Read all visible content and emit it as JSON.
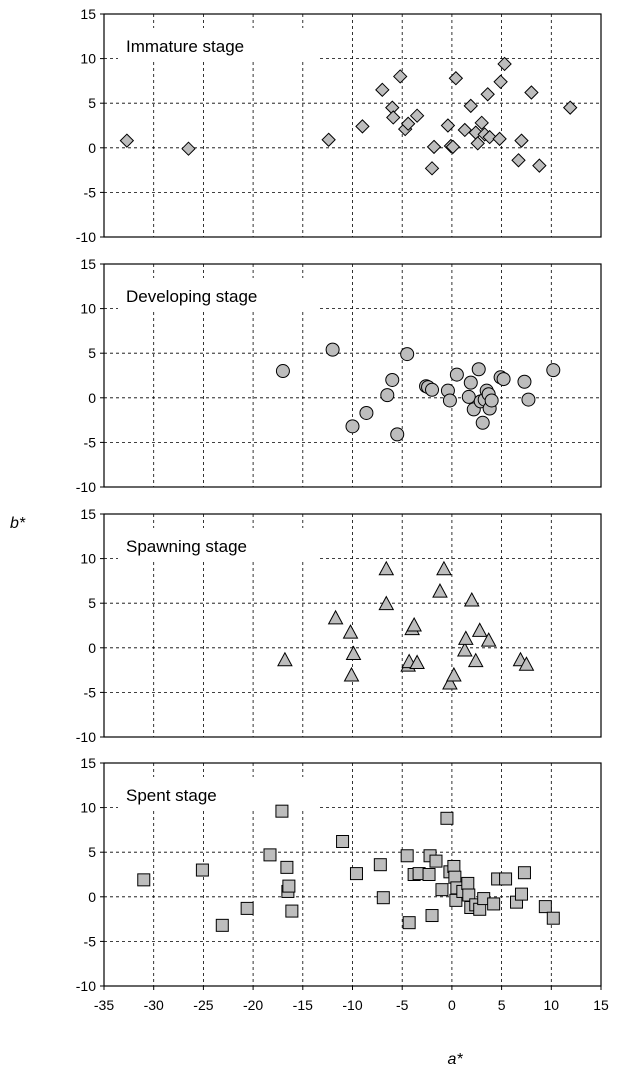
{
  "chart_data": {
    "type": "scatter",
    "xlabel": "a*",
    "ylabel": "b*",
    "xlim": [
      -35,
      15
    ],
    "ylim": [
      -10,
      15
    ],
    "xticks": [
      "-35",
      "-30",
      "-25",
      "-20",
      "-15",
      "-10",
      "-5",
      "0",
      "5",
      "10",
      "15"
    ],
    "yticks": [
      "-10",
      "-5",
      "0",
      "5",
      "10",
      "15"
    ],
    "grid": true,
    "marker_fill": "#bdbdbd",
    "panels": [
      {
        "title": "Immature stage",
        "marker": "diamond",
        "points": [
          [
            -32.7,
            0.8
          ],
          [
            -26.5,
            -0.1
          ],
          [
            -12.4,
            0.9
          ],
          [
            -9,
            2.4
          ],
          [
            -7,
            6.5
          ],
          [
            -6,
            4.5
          ],
          [
            -5.9,
            3.4
          ],
          [
            -5.2,
            8
          ],
          [
            -4.7,
            2.1
          ],
          [
            -4.4,
            2.7
          ],
          [
            -3.5,
            3.6
          ],
          [
            -2,
            -2.3
          ],
          [
            -1.8,
            0.1
          ],
          [
            -0.4,
            2.5
          ],
          [
            -0.1,
            0.2
          ],
          [
            0.1,
            0.1
          ],
          [
            0.4,
            7.8
          ],
          [
            1.3,
            2
          ],
          [
            1.9,
            4.7
          ],
          [
            2.4,
            1.7
          ],
          [
            2.6,
            0.5
          ],
          [
            3,
            2.8
          ],
          [
            3.3,
            1.5
          ],
          [
            3.6,
            6
          ],
          [
            3.8,
            1.2
          ],
          [
            4.8,
            1
          ],
          [
            4.9,
            7.4
          ],
          [
            5.3,
            9.4
          ],
          [
            6.7,
            -1.4
          ],
          [
            7,
            0.8
          ],
          [
            8,
            6.2
          ],
          [
            8.8,
            -2
          ],
          [
            11.9,
            4.5
          ]
        ]
      },
      {
        "title": "Developing stage",
        "marker": "circle",
        "points": [
          [
            -17,
            3
          ],
          [
            -12,
            5.4
          ],
          [
            -10,
            -3.2
          ],
          [
            -8.6,
            -1.7
          ],
          [
            -6.5,
            0.3
          ],
          [
            -6,
            2
          ],
          [
            -5.5,
            -4.1
          ],
          [
            -4.5,
            4.9
          ],
          [
            -2.6,
            1.3
          ],
          [
            -2.4,
            1.2
          ],
          [
            -2,
            0.9
          ],
          [
            -0.4,
            0.8
          ],
          [
            -0.2,
            -0.3
          ],
          [
            0.5,
            2.6
          ],
          [
            1.7,
            0.1
          ],
          [
            1.9,
            1.7
          ],
          [
            2.2,
            -1.3
          ],
          [
            2.7,
            3.2
          ],
          [
            2.9,
            -0.4
          ],
          [
            3.1,
            -2.8
          ],
          [
            3.3,
            -0.2
          ],
          [
            3.5,
            0.8
          ],
          [
            3.7,
            0.4
          ],
          [
            3.8,
            -1.2
          ],
          [
            4,
            -0.3
          ],
          [
            4.9,
            2.3
          ],
          [
            5.2,
            2.1
          ],
          [
            7.3,
            1.8
          ],
          [
            7.7,
            -0.2
          ],
          [
            10.2,
            3.1
          ]
        ]
      },
      {
        "title": "Spawning stage",
        "marker": "triangle",
        "points": [
          [
            -16.8,
            -1.4
          ],
          [
            -11.7,
            3.3
          ],
          [
            -10.2,
            1.7
          ],
          [
            -10.1,
            -3.1
          ],
          [
            -9.9,
            -0.7
          ],
          [
            -6.6,
            8.8
          ],
          [
            -6.6,
            4.9
          ],
          [
            -4.4,
            -2
          ],
          [
            -4.3,
            -1.6
          ],
          [
            -4,
            2.1
          ],
          [
            -3.8,
            2.5
          ],
          [
            -3.5,
            -1.7
          ],
          [
            -1.2,
            6.3
          ],
          [
            -0.8,
            8.8
          ],
          [
            -0.2,
            -4
          ],
          [
            0.2,
            -3.1
          ],
          [
            1.3,
            -0.3
          ],
          [
            1.4,
            1
          ],
          [
            2,
            5.3
          ],
          [
            2.4,
            -1.5
          ],
          [
            2.8,
            1.9
          ],
          [
            3.7,
            0.8
          ],
          [
            6.9,
            -1.4
          ],
          [
            7.5,
            -1.9
          ]
        ]
      },
      {
        "title": "Spent stage",
        "marker": "square",
        "points": [
          [
            -31,
            1.9
          ],
          [
            -25.1,
            3
          ],
          [
            -23.1,
            -3.2
          ],
          [
            -20.6,
            -1.3
          ],
          [
            -18.3,
            4.7
          ],
          [
            -17.1,
            9.6
          ],
          [
            -16.6,
            3.3
          ],
          [
            -16.5,
            0.6
          ],
          [
            -16.4,
            1.2
          ],
          [
            -16.1,
            -1.6
          ],
          [
            -11,
            6.2
          ],
          [
            -9.6,
            2.6
          ],
          [
            -7.2,
            3.6
          ],
          [
            -6.9,
            -0.1
          ],
          [
            -4.5,
            4.6
          ],
          [
            -4.3,
            -2.9
          ],
          [
            -3.8,
            2.5
          ],
          [
            -3.3,
            2.6
          ],
          [
            -2.3,
            2.5
          ],
          [
            -2.2,
            4.6
          ],
          [
            -2,
            -2.1
          ],
          [
            -1.6,
            4
          ],
          [
            -1,
            0.8
          ],
          [
            -0.5,
            8.8
          ],
          [
            -0.2,
            2.8
          ],
          [
            0.2,
            3.4
          ],
          [
            0.3,
            2.2
          ],
          [
            0.4,
            -0.4
          ],
          [
            0.5,
            1
          ],
          [
            1.1,
            0.6
          ],
          [
            1.6,
            1.5
          ],
          [
            1.7,
            0.2
          ],
          [
            1.9,
            -1.2
          ],
          [
            2.4,
            -0.9
          ],
          [
            2.8,
            -1.4
          ],
          [
            3.2,
            -0.2
          ],
          [
            4.2,
            -0.8
          ],
          [
            4.6,
            2
          ],
          [
            5.4,
            2
          ],
          [
            6.5,
            -0.6
          ],
          [
            7,
            0.3
          ],
          [
            7.3,
            2.7
          ],
          [
            9.4,
            -1.1
          ],
          [
            10.2,
            -2.4
          ]
        ]
      }
    ]
  }
}
